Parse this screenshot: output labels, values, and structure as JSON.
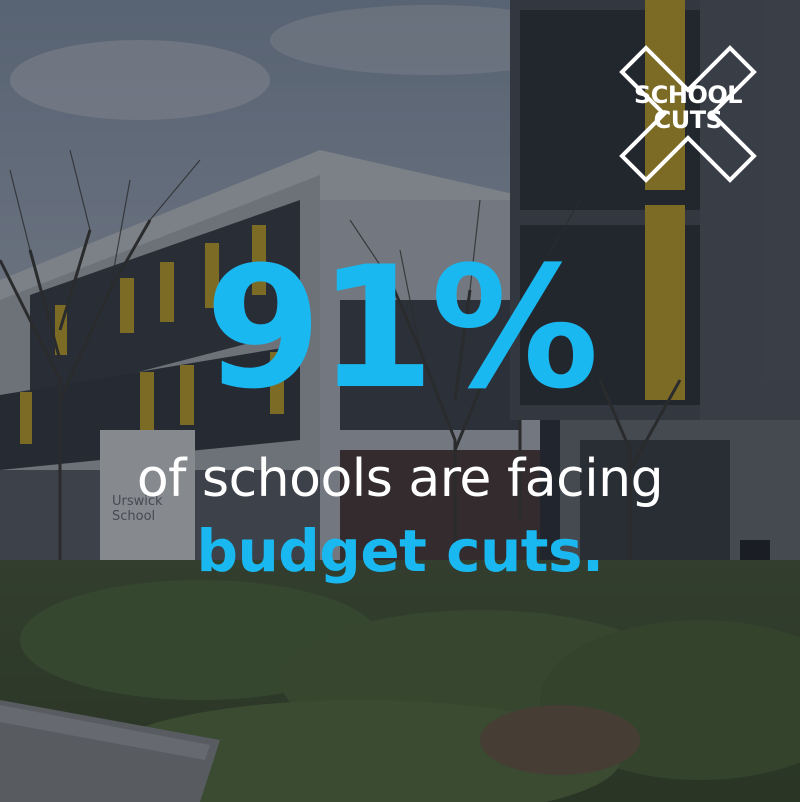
{
  "logo": {
    "line1": "SCHOOL",
    "line2": "CUTS",
    "icon": "x-cross-logo"
  },
  "headline": {
    "stat": "91%",
    "line1": "of schools are facing",
    "line2": "budget cuts."
  },
  "sign": {
    "line1": "Urswick",
    "line2": "School"
  },
  "colors": {
    "accent": "#1ab8f0",
    "text_white": "#ffffff",
    "overlay": "#141820"
  }
}
